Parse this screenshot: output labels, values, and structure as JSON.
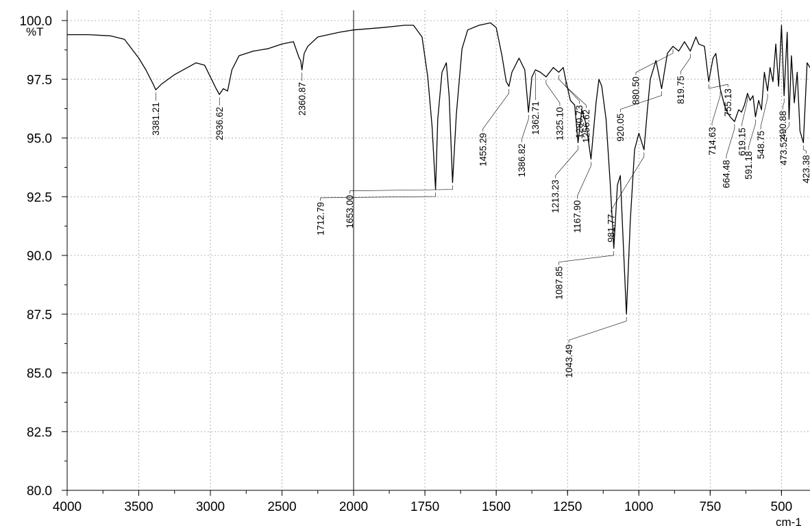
{
  "chart_data": {
    "type": "line",
    "ylabel": "%T",
    "xlabel": "cm-1",
    "xlim": [
      4000,
      400
    ],
    "ylim": [
      80.0,
      100.0
    ],
    "x_reversed": true,
    "grid": true,
    "x_ticks": [
      4000,
      3500,
      3000,
      2500,
      2000,
      1750,
      1500,
      1250,
      1000,
      750,
      500
    ],
    "x_tick_labels": [
      "4000",
      "3500",
      "3000",
      "2500",
      "2000",
      "1750",
      "1500",
      "1250",
      "1000",
      "750",
      "500"
    ],
    "y_ticks": [
      80.0,
      82.5,
      85.0,
      87.5,
      90.0,
      92.5,
      95.0,
      97.5,
      100.0
    ],
    "y_tick_labels": [
      "80.0",
      "82.5",
      "85.0",
      "87.5",
      "90.0",
      "92.5",
      "95.0",
      "97.5",
      "100.0"
    ],
    "series": [
      {
        "x": [
          4000,
          3850,
          3700,
          3600,
          3500,
          3450,
          3400,
          3381.21,
          3340,
          3250,
          3100,
          3040,
          3000,
          2960,
          2936.62,
          2910,
          2880,
          2850,
          2800,
          2700,
          2600,
          2500,
          2420,
          2380,
          2370,
          2360.87,
          2345,
          2320,
          2250,
          2100,
          2000,
          1900,
          1820,
          1790,
          1760,
          1740,
          1725,
          1712.79,
          1705,
          1690,
          1675,
          1665,
          1653,
          1640,
          1620,
          1600,
          1560,
          1520,
          1500,
          1480,
          1465,
          1455.29,
          1445,
          1420,
          1400,
          1386.82,
          1375,
          1362.71,
          1345,
          1325.1,
          1300,
          1280.73,
          1265,
          1256.62,
          1240,
          1225,
          1213.23,
          1200,
          1185,
          1167.9,
          1150,
          1140,
          1130,
          1115,
          1100,
          1087.85,
          1075,
          1065,
          1055,
          1043.49,
          1030,
          1015,
          1000,
          981.77,
          970,
          960,
          940,
          920.05,
          900,
          880.5,
          860,
          840,
          819.75,
          800,
          790,
          770,
          755.13,
          740,
          730,
          714.63,
          700,
          690,
          680,
          664.48,
          650,
          640,
          630,
          619.15,
          610,
          600,
          591.18,
          580,
          570,
          560,
          548.75,
          540,
          530,
          520,
          510,
          500,
          490.88,
          480,
          473.52,
          465,
          455,
          445,
          435,
          423.38,
          410,
          400
        ],
        "y": [
          99.4,
          99.4,
          99.35,
          99.2,
          98.4,
          97.9,
          97.3,
          97.05,
          97.3,
          97.7,
          98.2,
          98.1,
          97.6,
          97.1,
          96.85,
          97.1,
          97.0,
          97.9,
          98.5,
          98.7,
          98.8,
          99.0,
          99.1,
          98.4,
          98.3,
          97.9,
          98.6,
          98.9,
          99.3,
          99.5,
          99.6,
          99.7,
          99.8,
          99.8,
          99.3,
          97.6,
          95.5,
          92.8,
          95.8,
          97.8,
          98.2,
          96.8,
          93.1,
          96.0,
          98.8,
          99.6,
          99.8,
          99.9,
          99.7,
          98.5,
          97.4,
          97.2,
          97.8,
          98.4,
          97.9,
          96.1,
          97.6,
          97.9,
          97.8,
          97.6,
          98.0,
          97.8,
          98.0,
          97.5,
          96.6,
          96.4,
          94.8,
          96.2,
          95.6,
          94.1,
          96.5,
          97.5,
          97.2,
          95.8,
          93.0,
          90.3,
          93.0,
          93.4,
          90.6,
          87.5,
          91.5,
          94.5,
          95.2,
          94.5,
          96.2,
          97.5,
          98.3,
          97.1,
          98.6,
          98.9,
          98.7,
          99.1,
          98.7,
          99.3,
          99.0,
          98.9,
          97.4,
          98.4,
          98.6,
          97.1,
          96.4,
          96.1,
          95.9,
          95.7,
          96.2,
          96.1,
          96.4,
          96.9,
          96.6,
          96.8,
          95.9,
          96.6,
          96.2,
          97.8,
          97.0,
          98.0,
          97.4,
          99.0,
          97.2,
          99.8,
          96.8,
          99.5,
          95.8,
          98.5,
          96.5,
          97.8,
          95.3,
          94.8,
          98.2,
          98.0
        ]
      }
    ],
    "annotations": [
      {
        "x": 3381.21,
        "label": "3381.21"
      },
      {
        "x": 2936.62,
        "label": "2936.62"
      },
      {
        "x": 2360.87,
        "label": "2360.87"
      },
      {
        "x": 1712.79,
        "label": "1712.79"
      },
      {
        "x": 1653.0,
        "label": "1653.00"
      },
      {
        "x": 1455.29,
        "label": "1455.29"
      },
      {
        "x": 1386.82,
        "label": "1386.82"
      },
      {
        "x": 1362.71,
        "label": "1362.71"
      },
      {
        "x": 1325.1,
        "label": "1325.10"
      },
      {
        "x": 1280.73,
        "label": "1280.73"
      },
      {
        "x": 1256.62,
        "label": "1256.62"
      },
      {
        "x": 1213.23,
        "label": "1213.23"
      },
      {
        "x": 1167.9,
        "label": "1167.90"
      },
      {
        "x": 1087.85,
        "label": "1087.85"
      },
      {
        "x": 1043.49,
        "label": "1043.49"
      },
      {
        "x": 981.77,
        "label": "981.77"
      },
      {
        "x": 920.05,
        "label": "920.05"
      },
      {
        "x": 880.5,
        "label": "880.50"
      },
      {
        "x": 819.75,
        "label": "819.75"
      },
      {
        "x": 755.13,
        "label": "755.13"
      },
      {
        "x": 714.63,
        "label": "714.63"
      },
      {
        "x": 664.48,
        "label": "664.48"
      },
      {
        "x": 619.15,
        "label": "619.15"
      },
      {
        "x": 591.18,
        "label": "591.18"
      },
      {
        "x": 548.75,
        "label": "548.75"
      },
      {
        "x": 490.88,
        "label": "490.88"
      },
      {
        "x": 473.52,
        "label": "473.52"
      },
      {
        "x": 423.38,
        "label": "423.38"
      }
    ]
  }
}
